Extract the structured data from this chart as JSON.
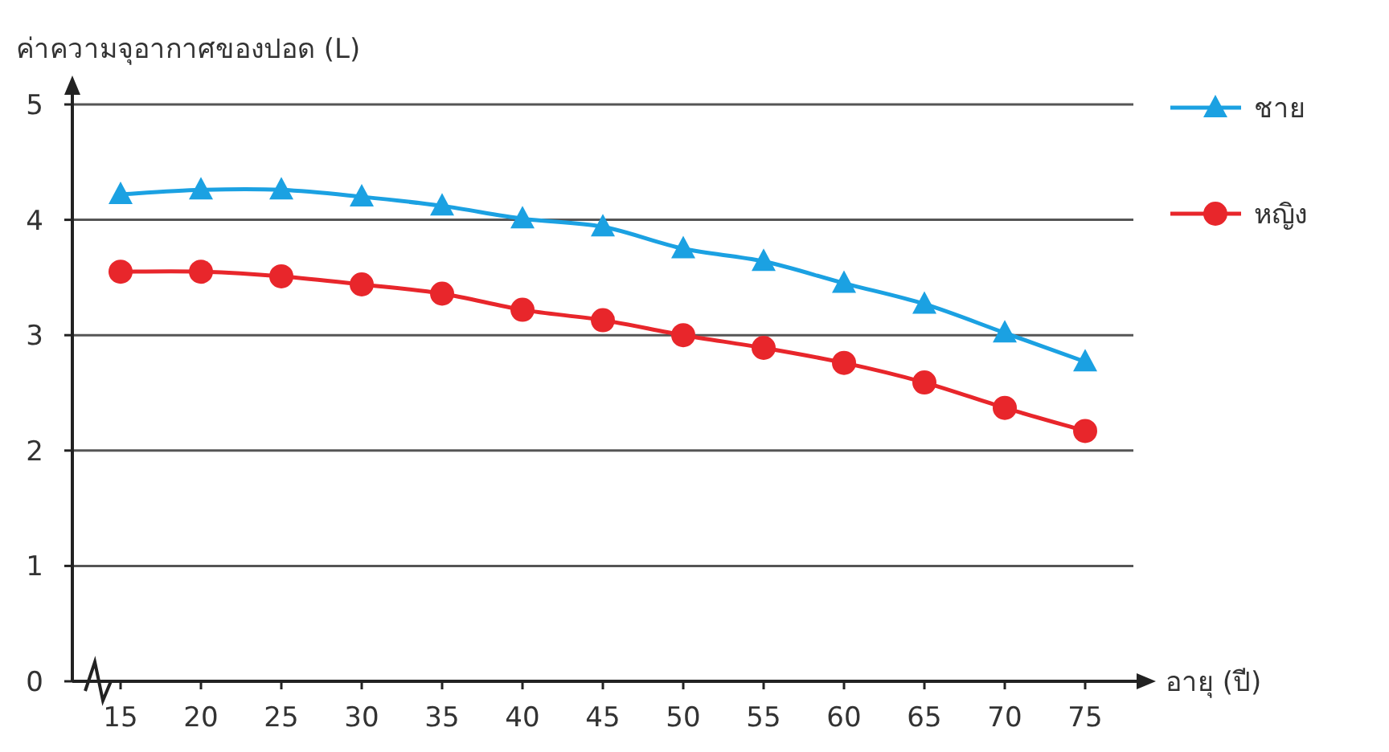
{
  "chart_data": {
    "type": "line",
    "ylabel": "ค่าความจุอากาศของปอด (L)",
    "xlabel": "อายุ (ปี)",
    "x": [
      15,
      20,
      25,
      30,
      35,
      40,
      45,
      50,
      55,
      60,
      65,
      70,
      75
    ],
    "series": [
      {
        "name": "ชาย",
        "color": "#1ba1e2",
        "marker": "triangle",
        "values": [
          4.22,
          4.26,
          4.26,
          4.2,
          4.12,
          4.01,
          3.94,
          3.75,
          3.64,
          3.45,
          3.27,
          3.02,
          2.77
        ]
      },
      {
        "name": "หญิง",
        "color": "#e8262b",
        "marker": "circle",
        "values": [
          3.55,
          3.55,
          3.51,
          3.44,
          3.36,
          3.22,
          3.13,
          3.0,
          2.89,
          2.76,
          2.59,
          2.37,
          2.17
        ]
      }
    ],
    "xlim": [
      12,
      78
    ],
    "ylim": [
      0,
      5
    ],
    "xticks": [
      15,
      20,
      25,
      30,
      35,
      40,
      45,
      50,
      55,
      60,
      65,
      70,
      75
    ],
    "yticks": [
      0,
      1,
      2,
      3,
      4,
      5
    ],
    "grid": "y",
    "legend": "top right",
    "line_style": "solid"
  }
}
